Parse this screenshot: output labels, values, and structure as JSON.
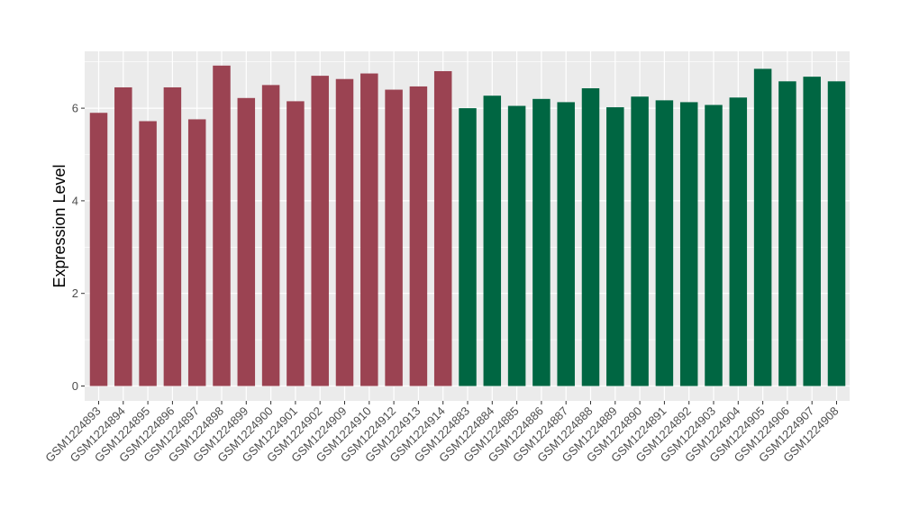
{
  "chart_data": {
    "type": "bar",
    "title": "",
    "xlabel": "",
    "ylabel": "Expression Level",
    "ylim": [
      0,
      7.3
    ],
    "yticks": [
      0,
      2,
      4,
      6
    ],
    "grid": true,
    "legend": "none",
    "colors": {
      "group_a": "#9b4352",
      "group_b": "#006642",
      "panel": "#ebebeb",
      "grid": "#ffffff"
    },
    "categories": [
      "GSM1224893",
      "GSM1224894",
      "GSM1224895",
      "GSM1224896",
      "GSM1224897",
      "GSM1224898",
      "GSM1224899",
      "GSM1224900",
      "GSM1224901",
      "GSM1224902",
      "GSM1224909",
      "GSM1224910",
      "GSM1224912",
      "GSM1224913",
      "GSM1224914",
      "GSM1224883",
      "GSM1224884",
      "GSM1224885",
      "GSM1224886",
      "GSM1224887",
      "GSM1224888",
      "GSM1224889",
      "GSM1224890",
      "GSM1224891",
      "GSM1224892",
      "GSM1224903",
      "GSM1224904",
      "GSM1224905",
      "GSM1224906",
      "GSM1224907",
      "GSM1224908"
    ],
    "values": [
      5.9,
      6.45,
      5.72,
      6.45,
      5.76,
      6.92,
      6.22,
      6.5,
      6.15,
      6.7,
      6.63,
      6.75,
      6.4,
      6.47,
      6.8,
      6.0,
      6.27,
      6.05,
      6.2,
      6.13,
      6.43,
      6.02,
      6.25,
      6.17,
      6.13,
      6.07,
      6.23,
      6.85,
      6.58,
      6.68,
      6.58
    ],
    "groups": [
      "a",
      "a",
      "a",
      "a",
      "a",
      "a",
      "a",
      "a",
      "a",
      "a",
      "a",
      "a",
      "a",
      "a",
      "a",
      "b",
      "b",
      "b",
      "b",
      "b",
      "b",
      "b",
      "b",
      "b",
      "b",
      "b",
      "b",
      "b",
      "b",
      "b",
      "b"
    ]
  }
}
